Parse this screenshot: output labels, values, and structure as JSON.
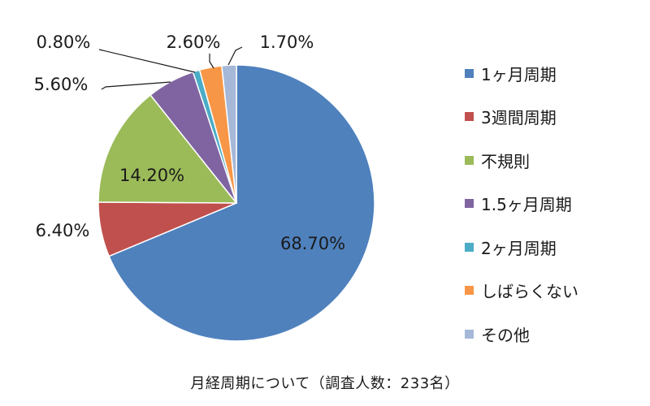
{
  "chart_data": {
    "type": "pie",
    "categories": [
      "1ヶ月周期",
      "3週間周期",
      "不規則",
      "1.5ヶ月周期",
      "2ヶ月周期",
      "しばらくない",
      "その他"
    ],
    "values": [
      68.7,
      6.4,
      14.2,
      5.6,
      0.8,
      2.6,
      1.7
    ],
    "data_labels": [
      "68.70%",
      "6.40%",
      "14.20%",
      "5.60%",
      "0.80%",
      "2.60%",
      "1.70%"
    ],
    "colors": [
      "#4f81bd",
      "#c0504d",
      "#9bbb59",
      "#8064a2",
      "#4bacc6",
      "#f79646",
      "#a6b8d8"
    ],
    "slice_order": [
      0,
      1,
      2,
      3,
      4,
      5,
      6
    ],
    "legend_position": "right",
    "caption": "月経周期について（調査人数：233名）"
  }
}
